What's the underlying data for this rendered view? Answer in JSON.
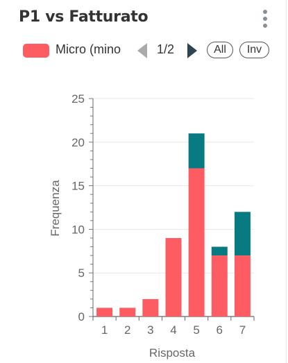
{
  "header": {
    "title": "P1 vs Fatturato",
    "menu_icon": "more-vertical-icon"
  },
  "legend": {
    "items": [
      {
        "label": "Micro (mino",
        "color": "#fd5c63"
      }
    ],
    "page_indicator": "1/2",
    "prev_icon": "triangle-left-icon",
    "next_icon": "triangle-right-icon",
    "all_label": "All",
    "inv_label": "Inv"
  },
  "chart_data": {
    "type": "bar",
    "stacked": true,
    "categories": [
      "1",
      "2",
      "3",
      "4",
      "5",
      "6",
      "7"
    ],
    "series": [
      {
        "name": "Micro (mino",
        "color": "#fd5c63",
        "values": [
          1,
          1,
          2,
          9,
          17,
          7,
          7
        ]
      },
      {
        "color": "#087a82",
        "values": [
          0,
          0,
          0,
          0,
          4,
          1,
          5
        ]
      }
    ],
    "xlabel": "Risposta",
    "ylabel": "Frequenza",
    "ylim": [
      0,
      25
    ],
    "yticks": [
      0,
      5,
      10,
      15,
      20,
      25
    ],
    "grid": true
  }
}
